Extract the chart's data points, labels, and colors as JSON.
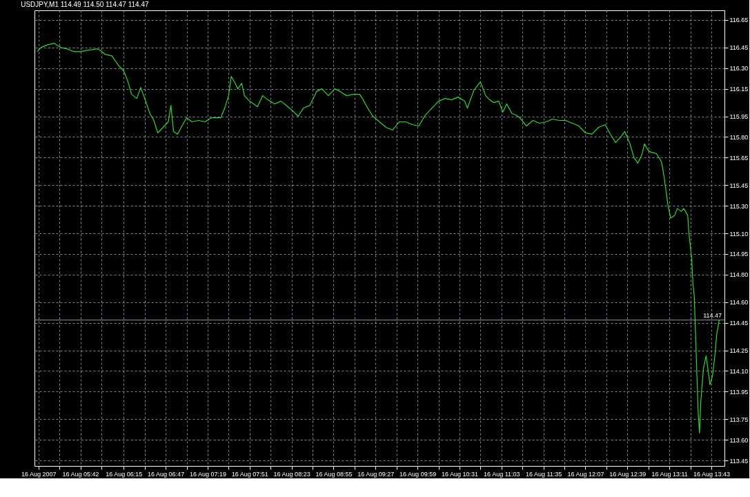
{
  "chart_data": {
    "type": "line",
    "title": "USDJPY,M1  114.49 114.50 114.47 114.47",
    "x": [
      "2007-08-16T05:09",
      "2007-08-16T05:12",
      "2007-08-16T05:17",
      "2007-08-16T05:22",
      "2007-08-16T05:27",
      "2007-08-16T05:32",
      "2007-08-16T05:37",
      "2007-08-16T05:42",
      "2007-08-16T05:47",
      "2007-08-16T05:55",
      "2007-08-16T05:57",
      "2007-08-16T06:01",
      "2007-08-16T06:06",
      "2007-08-16T06:11",
      "2007-08-16T06:15",
      "2007-08-16T06:18",
      "2007-08-16T06:21",
      "2007-08-16T06:25",
      "2007-08-16T06:28",
      "2007-08-16T06:31",
      "2007-08-16T06:35",
      "2007-08-16T06:38",
      "2007-08-16T06:41",
      "2007-08-16T06:45",
      "2007-08-16T06:49",
      "2007-08-16T06:51",
      "2007-08-16T06:53",
      "2007-08-16T06:56",
      "2007-08-16T07:00",
      "2007-08-16T07:03",
      "2007-08-16T07:07",
      "2007-08-16T07:12",
      "2007-08-16T07:17",
      "2007-08-16T07:22",
      "2007-08-16T07:29",
      "2007-08-16T07:32",
      "2007-08-16T07:35",
      "2007-08-16T07:37",
      "2007-08-16T07:40",
      "2007-08-16T07:42",
      "2007-08-16T07:45",
      "2007-08-16T07:47",
      "2007-08-16T07:51",
      "2007-08-16T07:54",
      "2007-08-16T07:57",
      "2007-08-16T08:01",
      "2007-08-16T08:05",
      "2007-08-16T08:10",
      "2007-08-16T08:15",
      "2007-08-16T08:20",
      "2007-08-16T08:25",
      "2007-08-16T08:28",
      "2007-08-16T08:32",
      "2007-08-16T08:37",
      "2007-08-16T08:42",
      "2007-08-16T08:46",
      "2007-08-16T08:51",
      "2007-08-16T08:56",
      "2007-08-16T09:00",
      "2007-08-16T09:05",
      "2007-08-16T09:10",
      "2007-08-16T09:15",
      "2007-08-16T09:17",
      "2007-08-16T09:21",
      "2007-08-16T09:25",
      "2007-08-16T09:30",
      "2007-08-16T09:35",
      "2007-08-16T09:40",
      "2007-08-16T09:45",
      "2007-08-16T09:50",
      "2007-08-16T09:55",
      "2007-08-16T10:00",
      "2007-08-16T10:05",
      "2007-08-16T10:10",
      "2007-08-16T10:15",
      "2007-08-16T10:20",
      "2007-08-16T10:25",
      "2007-08-16T10:30",
      "2007-08-16T10:35",
      "2007-08-16T10:37",
      "2007-08-16T10:42",
      "2007-08-16T10:47",
      "2007-08-16T10:51",
      "2007-08-16T10:54",
      "2007-08-16T10:57",
      "2007-08-16T11:01",
      "2007-08-16T11:04",
      "2007-08-16T11:07",
      "2007-08-16T11:11",
      "2007-08-16T11:14",
      "2007-08-16T11:17",
      "2007-08-16T11:22",
      "2007-08-16T11:27",
      "2007-08-16T11:32",
      "2007-08-16T11:37",
      "2007-08-16T11:42",
      "2007-08-16T11:47",
      "2007-08-16T11:52",
      "2007-08-16T11:57",
      "2007-08-16T12:02",
      "2007-08-16T12:07",
      "2007-08-16T12:12",
      "2007-08-16T12:17",
      "2007-08-16T12:22",
      "2007-08-16T12:26",
      "2007-08-16T12:30",
      "2007-08-16T12:34",
      "2007-08-16T12:37",
      "2007-08-16T12:41",
      "2007-08-16T12:44",
      "2007-08-16T12:47",
      "2007-08-16T12:50",
      "2007-08-16T12:52",
      "2007-08-16T12:55",
      "2007-08-16T12:57",
      "2007-08-16T13:01",
      "2007-08-16T13:05",
      "2007-08-16T13:07",
      "2007-08-16T13:08",
      "2007-08-16T13:10",
      "2007-08-16T13:12",
      "2007-08-16T13:15",
      "2007-08-16T13:17",
      "2007-08-16T13:20",
      "2007-08-16T13:22",
      "2007-08-16T13:25",
      "2007-08-16T13:26",
      "2007-08-16T13:28",
      "2007-08-16T13:29",
      "2007-08-16T13:30",
      "2007-08-16T13:32",
      "2007-08-16T13:33",
      "2007-08-16T13:34",
      "2007-08-16T13:35",
      "2007-08-16T13:37",
      "2007-08-16T13:39",
      "2007-08-16T13:41",
      "2007-08-16T13:42",
      "2007-08-16T13:44",
      "2007-08-16T13:46",
      "2007-08-16T13:47",
      "2007-08-16T13:49"
    ],
    "series": [
      {
        "color": "#2fd92f",
        "values": [
          116.42,
          116.45,
          116.47,
          116.48,
          116.45,
          116.44,
          116.42,
          116.42,
          116.43,
          116.44,
          116.43,
          116.4,
          116.39,
          116.32,
          116.28,
          116.21,
          116.11,
          116.08,
          116.16,
          116.08,
          115.97,
          115.92,
          115.83,
          115.87,
          115.91,
          116.03,
          115.84,
          115.82,
          115.89,
          115.94,
          115.91,
          115.92,
          115.91,
          115.94,
          115.94,
          116.01,
          116.1,
          116.24,
          116.19,
          116.15,
          116.19,
          116.1,
          116.06,
          116.04,
          116.02,
          116.1,
          116.07,
          116.04,
          116.06,
          116.02,
          115.98,
          115.95,
          116.01,
          116.03,
          116.13,
          116.15,
          116.1,
          116.15,
          116.13,
          116.1,
          116.11,
          116.11,
          116.08,
          116.01,
          115.95,
          115.91,
          115.87,
          115.85,
          115.91,
          115.91,
          115.89,
          115.88,
          115.96,
          116.01,
          116.06,
          116.08,
          116.07,
          116.09,
          116.06,
          116.01,
          116.14,
          116.2,
          116.1,
          116.07,
          116.05,
          116.06,
          115.98,
          116.04,
          115.97,
          115.96,
          115.94,
          115.88,
          115.92,
          115.9,
          115.91,
          115.93,
          115.92,
          115.92,
          115.9,
          115.88,
          115.83,
          115.82,
          115.87,
          115.89,
          115.82,
          115.76,
          115.8,
          115.84,
          115.75,
          115.65,
          115.61,
          115.67,
          115.75,
          115.7,
          115.69,
          115.68,
          115.62,
          115.51,
          115.44,
          115.3,
          115.21,
          115.23,
          115.28,
          115.26,
          115.28,
          115.23,
          115.09,
          114.92,
          114.73,
          114.64,
          114.07,
          113.79,
          113.65,
          113.88,
          114.12,
          114.21,
          114.07,
          114.0,
          114.07,
          114.24,
          114.36,
          114.47
        ]
      }
    ],
    "xlim": [
      "2007-08-16T05:07",
      "2007-08-16T13:53"
    ],
    "xticks": [
      {
        "value": "2007-08-16T05:10",
        "label": "16 Aug 2007"
      },
      {
        "value": "2007-08-16T05:26",
        "label": null
      },
      {
        "value": "2007-08-16T05:42",
        "label": "16 Aug 05:42"
      },
      {
        "value": "2007-08-16T05:58",
        "label": null
      },
      {
        "value": "2007-08-16T06:15",
        "label": "16 Aug 06:15"
      },
      {
        "value": "2007-08-16T06:31",
        "label": null
      },
      {
        "value": "2007-08-16T06:47",
        "label": "16 Aug 06:47"
      },
      {
        "value": "2007-08-16T07:03",
        "label": null
      },
      {
        "value": "2007-08-16T07:19",
        "label": "16 Aug 07:19"
      },
      {
        "value": "2007-08-16T07:35",
        "label": null
      },
      {
        "value": "2007-08-16T07:51",
        "label": "16 Aug 07:51"
      },
      {
        "value": "2007-08-16T08:07",
        "label": null
      },
      {
        "value": "2007-08-16T08:23",
        "label": "16 Aug 08:23"
      },
      {
        "value": "2007-08-16T08:39",
        "label": null
      },
      {
        "value": "2007-08-16T08:55",
        "label": "16 Aug 08:55"
      },
      {
        "value": "2007-08-16T09:11",
        "label": null
      },
      {
        "value": "2007-08-16T09:27",
        "label": "16 Aug 09:27"
      },
      {
        "value": "2007-08-16T09:43",
        "label": null
      },
      {
        "value": "2007-08-16T09:59",
        "label": "16 Aug 09:59"
      },
      {
        "value": "2007-08-16T10:15",
        "label": null
      },
      {
        "value": "2007-08-16T10:31",
        "label": "16 Aug 10:31"
      },
      {
        "value": "2007-08-16T10:47",
        "label": null
      },
      {
        "value": "2007-08-16T11:03",
        "label": "16 Aug 11:03"
      },
      {
        "value": "2007-08-16T11:19",
        "label": null
      },
      {
        "value": "2007-08-16T11:35",
        "label": "16 Aug 11:35"
      },
      {
        "value": "2007-08-16T11:51",
        "label": null
      },
      {
        "value": "2007-08-16T12:07",
        "label": "16 Aug 12:07"
      },
      {
        "value": "2007-08-16T12:23",
        "label": null
      },
      {
        "value": "2007-08-16T12:39",
        "label": "16 Aug 12:39"
      },
      {
        "value": "2007-08-16T12:55",
        "label": null
      },
      {
        "value": "2007-08-16T13:11",
        "label": "16 Aug 13:11"
      },
      {
        "value": "2007-08-16T13:27",
        "label": null
      },
      {
        "value": "2007-08-16T13:43",
        "label": "16 Aug 13:43"
      }
    ],
    "ylim": [
      113.41,
      116.72
    ],
    "yticks": [
      {
        "value": 113.45,
        "label": "113.45"
      },
      {
        "value": 113.6,
        "label": "113.60"
      },
      {
        "value": 113.75,
        "label": "113.75"
      },
      {
        "value": 113.95,
        "label": "113.95"
      },
      {
        "value": 114.1,
        "label": "114.10"
      },
      {
        "value": 114.25,
        "label": "114.25"
      },
      {
        "value": 114.45,
        "label": "114.45"
      },
      {
        "value": 114.6,
        "label": "114.60"
      },
      {
        "value": 114.8,
        "label": "114.80"
      },
      {
        "value": 114.95,
        "label": "114.95"
      },
      {
        "value": 115.1,
        "label": "115.10"
      },
      {
        "value": 115.3,
        "label": "115.30"
      },
      {
        "value": 115.45,
        "label": "115.45"
      },
      {
        "value": 115.65,
        "label": "115.65"
      },
      {
        "value": 115.8,
        "label": "115.80"
      },
      {
        "value": 115.95,
        "label": "115.95"
      },
      {
        "value": 116.15,
        "label": "116.15"
      },
      {
        "value": 116.3,
        "label": "116.30"
      },
      {
        "value": 116.45,
        "label": "116.45"
      },
      {
        "value": 116.65,
        "label": "116.65"
      }
    ],
    "ref_lines": [
      {
        "axis": "y",
        "value": 114.47,
        "label": "114.47",
        "color": "#8899aa"
      }
    ],
    "grid": true,
    "line_style": "solid",
    "marker": "none"
  }
}
